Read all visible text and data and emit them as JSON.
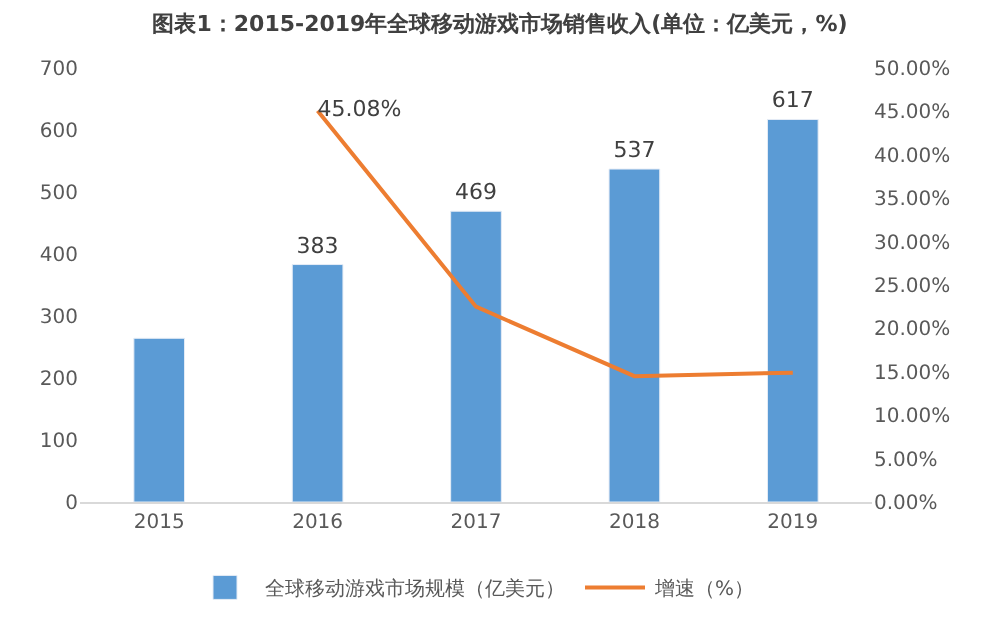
{
  "chart_data": {
    "type": "bar",
    "title": "图表1：2015-2019年全球移动游戏市场销售收入(单位：亿美元，%)",
    "categories": [
      "2015",
      "2016",
      "2017",
      "2018",
      "2019"
    ],
    "series": [
      {
        "name": "全球移动游戏市场规模（亿美元）",
        "color": "#5b9bd5",
        "values": [
          264,
          383,
          469,
          537,
          617
        ],
        "value_labels": [
          null,
          "383",
          "469",
          "537",
          "617"
        ]
      },
      {
        "name": "增速（%）",
        "type": "line",
        "axis": "y2",
        "color": "#ed7d31",
        "values": [
          null,
          45.08,
          22.5,
          14.5,
          14.9
        ],
        "value_labels": [
          null,
          "45.08%",
          null,
          null,
          null
        ]
      }
    ],
    "ylim": [
      0,
      700
    ],
    "yticks": [
      0,
      100,
      200,
      300,
      400,
      500,
      600,
      700
    ],
    "y2lim": [
      0,
      50
    ],
    "y2ticks": [
      {
        "value": 0,
        "label": "0.00%"
      },
      {
        "value": 5,
        "label": "5.00%"
      },
      {
        "value": 10,
        "label": "10.00%"
      },
      {
        "value": 15,
        "label": "15.00%"
      },
      {
        "value": 20,
        "label": "20.00%"
      },
      {
        "value": 25,
        "label": "25.00%"
      },
      {
        "value": 30,
        "label": "30.00%"
      },
      {
        "value": 35,
        "label": "35.00%"
      },
      {
        "value": 40,
        "label": "40.00%"
      },
      {
        "value": 45,
        "label": "45.00%"
      },
      {
        "value": 50,
        "label": "50.00%"
      }
    ],
    "legend": "bottom",
    "marker": "none",
    "line_style": "solid"
  }
}
